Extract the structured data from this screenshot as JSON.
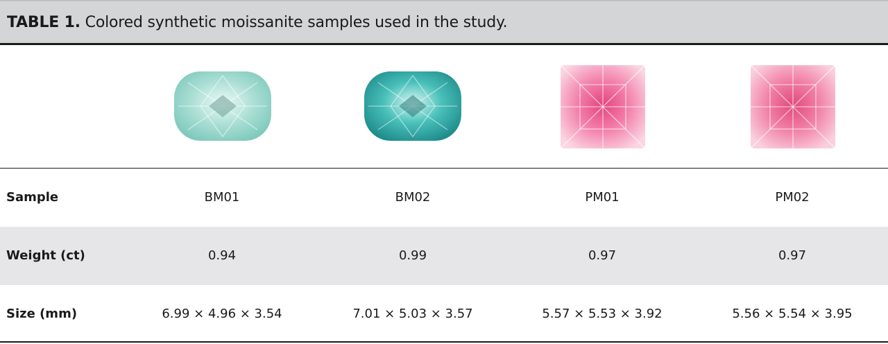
{
  "caption": {
    "lead": "TABLE 1.",
    "text": " Colored synthetic moissanite samples used in the study."
  },
  "images": [
    {
      "icon": "moissanite-BM01-photo",
      "color": "#9fd9ce"
    },
    {
      "icon": "moissanite-BM02-photo",
      "color": "#39b7b2"
    },
    {
      "icon": "moissanite-PM01-photo",
      "color": "#f27aa6"
    },
    {
      "icon": "moissanite-PM02-photo",
      "color": "#f07aa2"
    }
  ],
  "rows": [
    {
      "label": "Sample",
      "values": [
        "BM01",
        "BM02",
        "PM01",
        "PM02"
      ]
    },
    {
      "label": "Weight (ct)",
      "values": [
        "0.94",
        "0.99",
        "0.97",
        "0.97"
      ]
    },
    {
      "label": "Size (mm)",
      "values": [
        "6.99 × 4.96 × 3.54",
        "7.01 × 5.03 × 3.57",
        "5.57 × 5.53 × 3.92",
        "5.56 × 5.54 × 3.95"
      ]
    }
  ]
}
